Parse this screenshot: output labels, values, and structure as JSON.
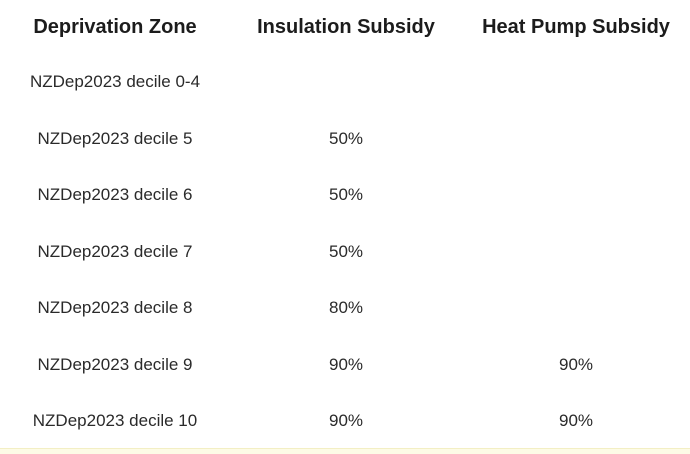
{
  "table": {
    "headers": [
      "Deprivation Zone",
      "Insulation Subsidy",
      "Heat Pump Subsidy"
    ],
    "rows": [
      {
        "zone": "NZDep2023 decile 0-4",
        "insulation": "",
        "heat_pump": ""
      },
      {
        "zone": "NZDep2023 decile 5",
        "insulation": "50%",
        "heat_pump": ""
      },
      {
        "zone": "NZDep2023 decile 6",
        "insulation": "50%",
        "heat_pump": ""
      },
      {
        "zone": "NZDep2023 decile 7",
        "insulation": "50%",
        "heat_pump": ""
      },
      {
        "zone": "NZDep2023 decile 8",
        "insulation": "80%",
        "heat_pump": ""
      },
      {
        "zone": "NZDep2023 decile 9",
        "insulation": "90%",
        "heat_pump": "90%"
      },
      {
        "zone": "NZDep2023 decile 10",
        "insulation": "90%",
        "heat_pump": "90%"
      }
    ]
  },
  "colors": {
    "text": "#1f1f1f",
    "background": "#ffffff",
    "bottom_strip": "#fdfbe6"
  }
}
